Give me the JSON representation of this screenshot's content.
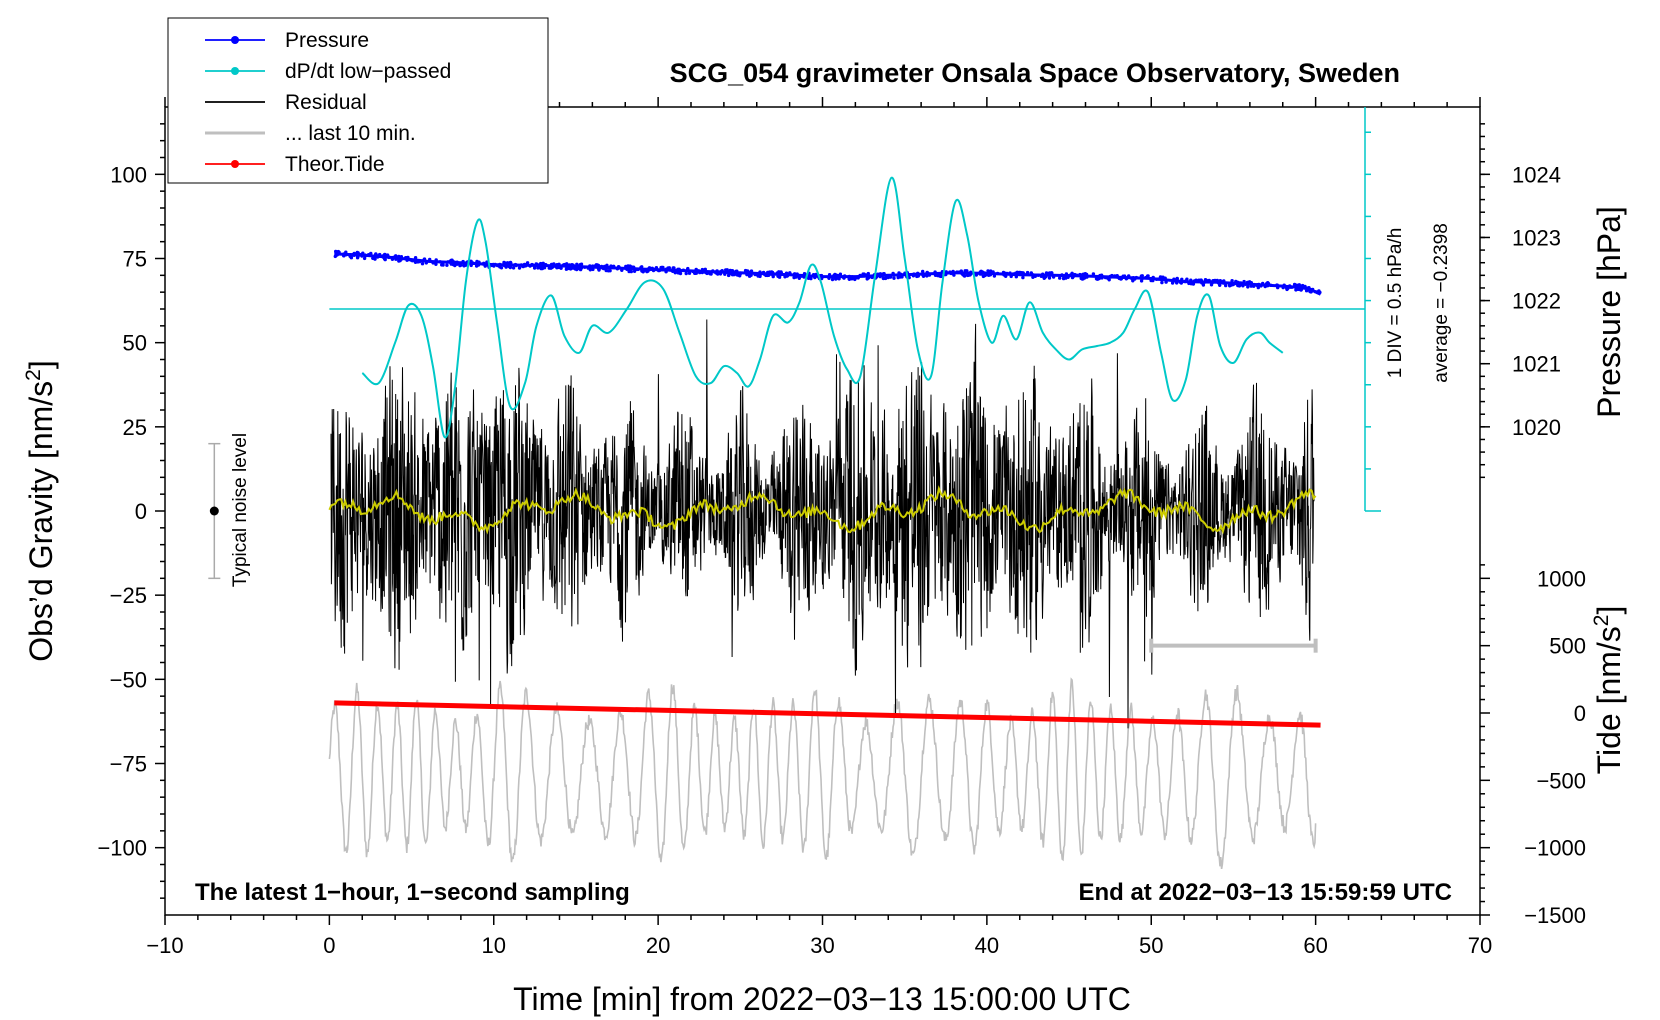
{
  "chart_data": {
    "type": "line",
    "title": "SCG_054 gravimeter Onsala Space Observatory, Sweden",
    "xlabel": "Time [min] from 2022−03−13 15:00:00 UTC",
    "ylabel": "Obs’d Gravity [nm/s",
    "ylabel_sup": "2",
    "ylabel_end": "]",
    "pressure_label": "Pressure [hPa]",
    "tide_label": "Tide [nm/s",
    "tide_label_sup": "2",
    "tide_label_end": "]",
    "xlim": [
      -10,
      70
    ],
    "ylim": [
      -120,
      120
    ],
    "x_ticks": [
      -10,
      0,
      10,
      20,
      30,
      40,
      50,
      60,
      70
    ],
    "x_tick_labels": [
      "−10",
      "0",
      "10",
      "20",
      "30",
      "40",
      "50",
      "60",
      "70"
    ],
    "y_ticks": [
      -100,
      -75,
      -50,
      -25,
      0,
      25,
      50,
      75,
      100
    ],
    "y_tick_labels": [
      "−100",
      "−75",
      "−50",
      "−25",
      "0",
      "25",
      "50",
      "75",
      "100"
    ],
    "pressure_ticks": [
      1020,
      1021,
      1022,
      1023,
      1024
    ],
    "pressure_tick_labels": [
      "1020",
      "1021",
      "1022",
      "1023",
      "1024"
    ],
    "tide_ticks": [
      -1500,
      -1000,
      -500,
      0,
      500,
      1000
    ],
    "tide_tick_labels": [
      "−1500",
      "−1000",
      "−500",
      "0",
      "500",
      "1000"
    ],
    "legend": {
      "position": "top-left",
      "entries": [
        {
          "label": "Pressure",
          "color": "#0000ff",
          "marker": true
        },
        {
          "label": "dP/dt low−passed",
          "color": "#00c8c8",
          "marker": true
        },
        {
          "label": "Residual",
          "color": "#000000",
          "marker": false
        },
        {
          "label": "... last 10 min.",
          "color": "#bfbfbf",
          "marker": false
        },
        {
          "label": "Theor.Tide",
          "color": "#ff0000",
          "marker": true
        }
      ]
    },
    "annotations": {
      "bottom_left": "The latest 1−hour, 1−second sampling",
      "bottom_right": "End at 2022−03−13 15:59:59 UTC",
      "noise_label": "Typical noise level",
      "div_label": "1 DIV = 0.5 hPa/h",
      "average_label": "average = −0.2398"
    },
    "noise_bar": {
      "x": -7,
      "y": 0,
      "low": -20,
      "high": 20
    },
    "last10_bracket": {
      "x_start": 50,
      "x_end": 60
    },
    "series": [
      {
        "name": "Pressure",
        "units": "hPa",
        "color": "#0000ff",
        "x": [
          0.3,
          2,
          4,
          6,
          8,
          10,
          12,
          14,
          16,
          18,
          20,
          22,
          24,
          26,
          28,
          30,
          32,
          34,
          36,
          38,
          40,
          42,
          44,
          46,
          48,
          50,
          52,
          54,
          56,
          58,
          59.5,
          60.3
        ],
        "values": [
          1022.74,
          1022.72,
          1022.68,
          1022.62,
          1022.6,
          1022.57,
          1022.56,
          1022.55,
          1022.53,
          1022.51,
          1022.49,
          1022.47,
          1022.45,
          1022.43,
          1022.41,
          1022.38,
          1022.38,
          1022.4,
          1022.42,
          1022.44,
          1022.43,
          1022.41,
          1022.4,
          1022.39,
          1022.37,
          1022.35,
          1022.3,
          1022.29,
          1022.26,
          1022.23,
          1022.2,
          1022.1
        ]
      },
      {
        "name": "dP/dt low-passed",
        "units": "nm/s2 display",
        "color": "#00c8c8",
        "reference_line_y": 60,
        "x": [
          2,
          3,
          4,
          4.8,
          5.6,
          6.3,
          7,
          7.6,
          8.3,
          9,
          9.5,
          10.2,
          11,
          11.9,
          12.6,
          13.5,
          14.3,
          15.2,
          16,
          17,
          18.1,
          19.2,
          20.3,
          21.3,
          22.3,
          23.2,
          24,
          24.8,
          25.5,
          26.2,
          27,
          27.9,
          28.6,
          29.3,
          29.9,
          30.7,
          31.5,
          32.3,
          33.2,
          34.2,
          35,
          35.8,
          36.6,
          37.3,
          38.1,
          38.8,
          39.5,
          40.3,
          41,
          41.8,
          42.6,
          43.4,
          44.2,
          45,
          45.8,
          46.7,
          47.5,
          48.3,
          49,
          49.8,
          50.6,
          51.3,
          52.1,
          52.8,
          53.5,
          54.2,
          55,
          55.8,
          56.6,
          57.2,
          58
        ],
        "values": [
          41,
          38,
          50,
          61,
          58,
          43,
          22,
          35,
          68,
          86,
          80,
          56,
          31,
          38,
          55,
          64,
          52,
          47,
          55,
          53,
          60,
          68,
          66,
          53,
          40,
          38,
          43,
          41,
          37,
          45,
          58,
          56,
          62,
          73,
          68,
          52,
          42,
          40,
          70,
          99,
          75,
          48,
          40,
          68,
          92,
          82,
          62,
          50,
          58,
          51,
          62,
          53,
          48,
          45,
          48,
          49,
          50,
          53,
          60,
          65,
          47,
          33,
          39,
          58,
          64,
          49,
          44,
          51,
          53,
          50,
          47
        ]
      },
      {
        "name": "Theor.Tide",
        "units": "nm/s2",
        "color": "#ff0000",
        "x": [
          0.3,
          60.3
        ],
        "values": [
          75,
          -90
        ]
      }
    ]
  }
}
